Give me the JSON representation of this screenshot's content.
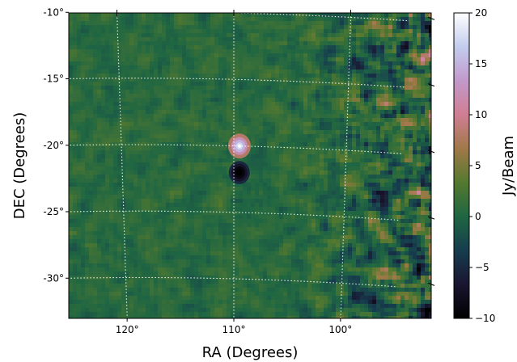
{
  "chart_data": {
    "type": "heatmap",
    "title": "",
    "xlabel": "RA (Degrees)",
    "ylabel": "DEC (Degrees)",
    "x_ticks": [
      {
        "value": 120,
        "label": "120°"
      },
      {
        "value": 110,
        "label": "110°"
      },
      {
        "value": 100,
        "label": "100°"
      }
    ],
    "y_ticks": [
      {
        "value": -10,
        "label": "-10°"
      },
      {
        "value": -15,
        "label": "-15°"
      },
      {
        "value": -20,
        "label": "-20°"
      },
      {
        "value": -25,
        "label": "-25°"
      },
      {
        "value": -30,
        "label": "-30°"
      }
    ],
    "xlim": [
      125,
      96.5
    ],
    "ylim": [
      -33,
      -10
    ],
    "grid": true,
    "colorbar": {
      "label": "Jy/Beam",
      "range": [
        -10,
        20
      ],
      "ticks": [
        {
          "value": 20,
          "label": "20"
        },
        {
          "value": 15,
          "label": "15"
        },
        {
          "value": 10,
          "label": "10"
        },
        {
          "value": 5,
          "label": "5"
        },
        {
          "value": 0,
          "label": "0"
        },
        {
          "value": -5,
          "label": "−5"
        },
        {
          "value": -10,
          "label": "−10"
        }
      ],
      "colormap": "cubehelix",
      "colors": [
        "#000000",
        "#1a1530",
        "#163d4e",
        "#1f6642",
        "#54792f",
        "#a07949",
        "#d07e93",
        "#c299ca",
        "#c2cded",
        "#ffffff"
      ]
    },
    "sources": [
      {
        "ra": 109.5,
        "dec": -20,
        "peak": 18,
        "kind": "bright"
      },
      {
        "ra": 109.5,
        "dec": -22,
        "peak": -10,
        "kind": "negative"
      }
    ]
  }
}
